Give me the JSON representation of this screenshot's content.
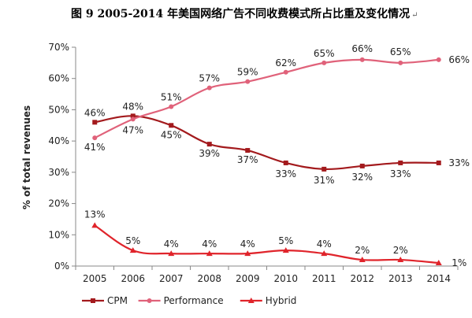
{
  "chart_data": {
    "type": "line",
    "title": "图 9  2005-2014 年美国网络广告不同收费模式所占比重及变化情况",
    "title_mark": "↵",
    "ylabel": "% of total revenues",
    "xlabel": "",
    "x": [
      "2005",
      "2006",
      "2007",
      "2008",
      "2009",
      "2010",
      "2011",
      "2012",
      "2013",
      "2014"
    ],
    "ylim": [
      0,
      70
    ],
    "yticks": [
      0,
      10,
      20,
      30,
      40,
      50,
      60,
      70
    ],
    "ytick_labels": [
      "0%",
      "10%",
      "20%",
      "30%",
      "40%",
      "50%",
      "60%",
      "70%"
    ],
    "grid": false,
    "legend_position": "bottom",
    "series": [
      {
        "name": "CPM",
        "color": "#a31a1d",
        "marker": "square",
        "values": [
          46,
          48,
          45,
          39,
          37,
          33,
          31,
          32,
          33,
          33
        ],
        "labels": [
          "46%",
          "48%",
          "45%",
          "39%",
          "37%",
          "33%",
          "31%",
          "32%",
          "33%",
          "33%"
        ]
      },
      {
        "name": "Performance",
        "color": "#e0627a",
        "marker": "circle",
        "values": [
          41,
          47,
          51,
          57,
          59,
          62,
          65,
          66,
          65,
          66
        ],
        "labels": [
          "41%",
          "47%",
          "51%",
          "57%",
          "59%",
          "62%",
          "65%",
          "66%",
          "65%",
          "66%"
        ]
      },
      {
        "name": "Hybrid",
        "color": "#e0242b",
        "marker": "triangle",
        "values": [
          13,
          5,
          4,
          4,
          4,
          5,
          4,
          2,
          2,
          1
        ],
        "labels": [
          "13%",
          "5%",
          "4%",
          "4%",
          "4%",
          "5%",
          "4%",
          "2%",
          "2%",
          "1%"
        ]
      }
    ]
  }
}
